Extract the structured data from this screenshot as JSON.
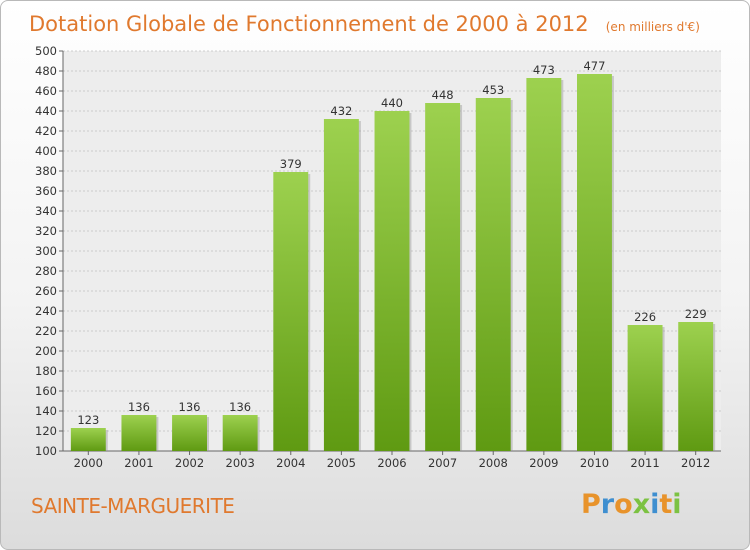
{
  "chart_data": {
    "type": "bar",
    "title": "Dotation Globale de Fonctionnement de 2000 à 2012",
    "unit_note": "(en milliers d'€)",
    "categories": [
      "2000",
      "2001",
      "2002",
      "2003",
      "2004",
      "2005",
      "2006",
      "2007",
      "2008",
      "2009",
      "2010",
      "2011",
      "2012"
    ],
    "values": [
      123,
      136,
      136,
      136,
      379,
      432,
      440,
      448,
      453,
      473,
      477,
      226,
      229
    ],
    "ylim": [
      100,
      500
    ],
    "yticks": [
      100,
      120,
      140,
      160,
      180,
      200,
      220,
      240,
      260,
      280,
      300,
      320,
      340,
      360,
      380,
      400,
      420,
      440,
      460,
      480,
      500
    ],
    "grid": true,
    "bar_color_top": "#9dd14f",
    "bar_color_bottom": "#5f9a12"
  },
  "place_name": "SAINTE-MARGUERITE",
  "brand": {
    "letters": [
      "P",
      "r",
      "o",
      "x",
      "i",
      "t",
      "i"
    ],
    "colors": [
      "#e8932b",
      "#3f8fd0",
      "#e8932b",
      "#7cc242",
      "#3f8fd0",
      "#e8932b",
      "#7cc242"
    ]
  }
}
